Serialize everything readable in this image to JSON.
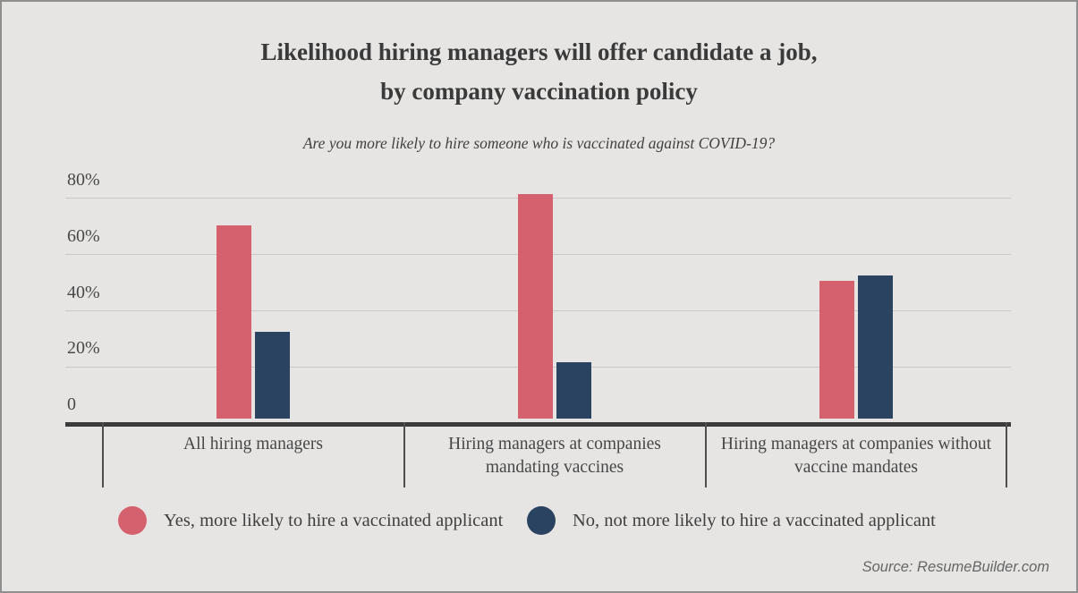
{
  "title": {
    "line1": "Likelihood hiring managers will offer candidate a job,",
    "line2": "by company vaccination policy"
  },
  "subtitle": "Are you more likely to hire someone who is vaccinated against COVID-19?",
  "source": "Source: ResumeBuilder.com",
  "colors": {
    "yes_bar": "#d5616f",
    "no_bar": "#2a4361",
    "background": "#e6e5e4",
    "axis": "#3b3b3b",
    "gridline": "#cac9c7",
    "text": "#3f3f3f"
  },
  "y_axis": {
    "tick_labels": [
      "80%",
      "60%",
      "40%",
      "20%",
      "0"
    ]
  },
  "legend": [
    {
      "label": "Yes, more likely to hire a vaccinated applicant",
      "color": "#d5616f"
    },
    {
      "label": "No, not more likely to hire a vaccinated applicant",
      "color": "#2a4361"
    }
  ],
  "chart_data": {
    "type": "bar",
    "categories": [
      "All hiring managers",
      "Hiring managers at companies mandating vaccines",
      "Hiring managers at companies without vaccine mandates"
    ],
    "series": [
      {
        "name": "Yes, more likely to hire a vaccinated applicant",
        "color": "#d5616f",
        "values": [
          69,
          80,
          49
        ]
      },
      {
        "name": "No, not more likely to hire a vaccinated applicant",
        "color": "#2a4361",
        "values": [
          31,
          20,
          51
        ]
      }
    ],
    "title": "Likelihood hiring managers will offer candidate a job, by company vaccination policy",
    "xlabel": "",
    "ylabel": "",
    "ylim": [
      0,
      80
    ],
    "y_ticks": [
      0,
      20,
      40,
      60,
      80
    ],
    "grid": true,
    "legend_position": "bottom"
  }
}
